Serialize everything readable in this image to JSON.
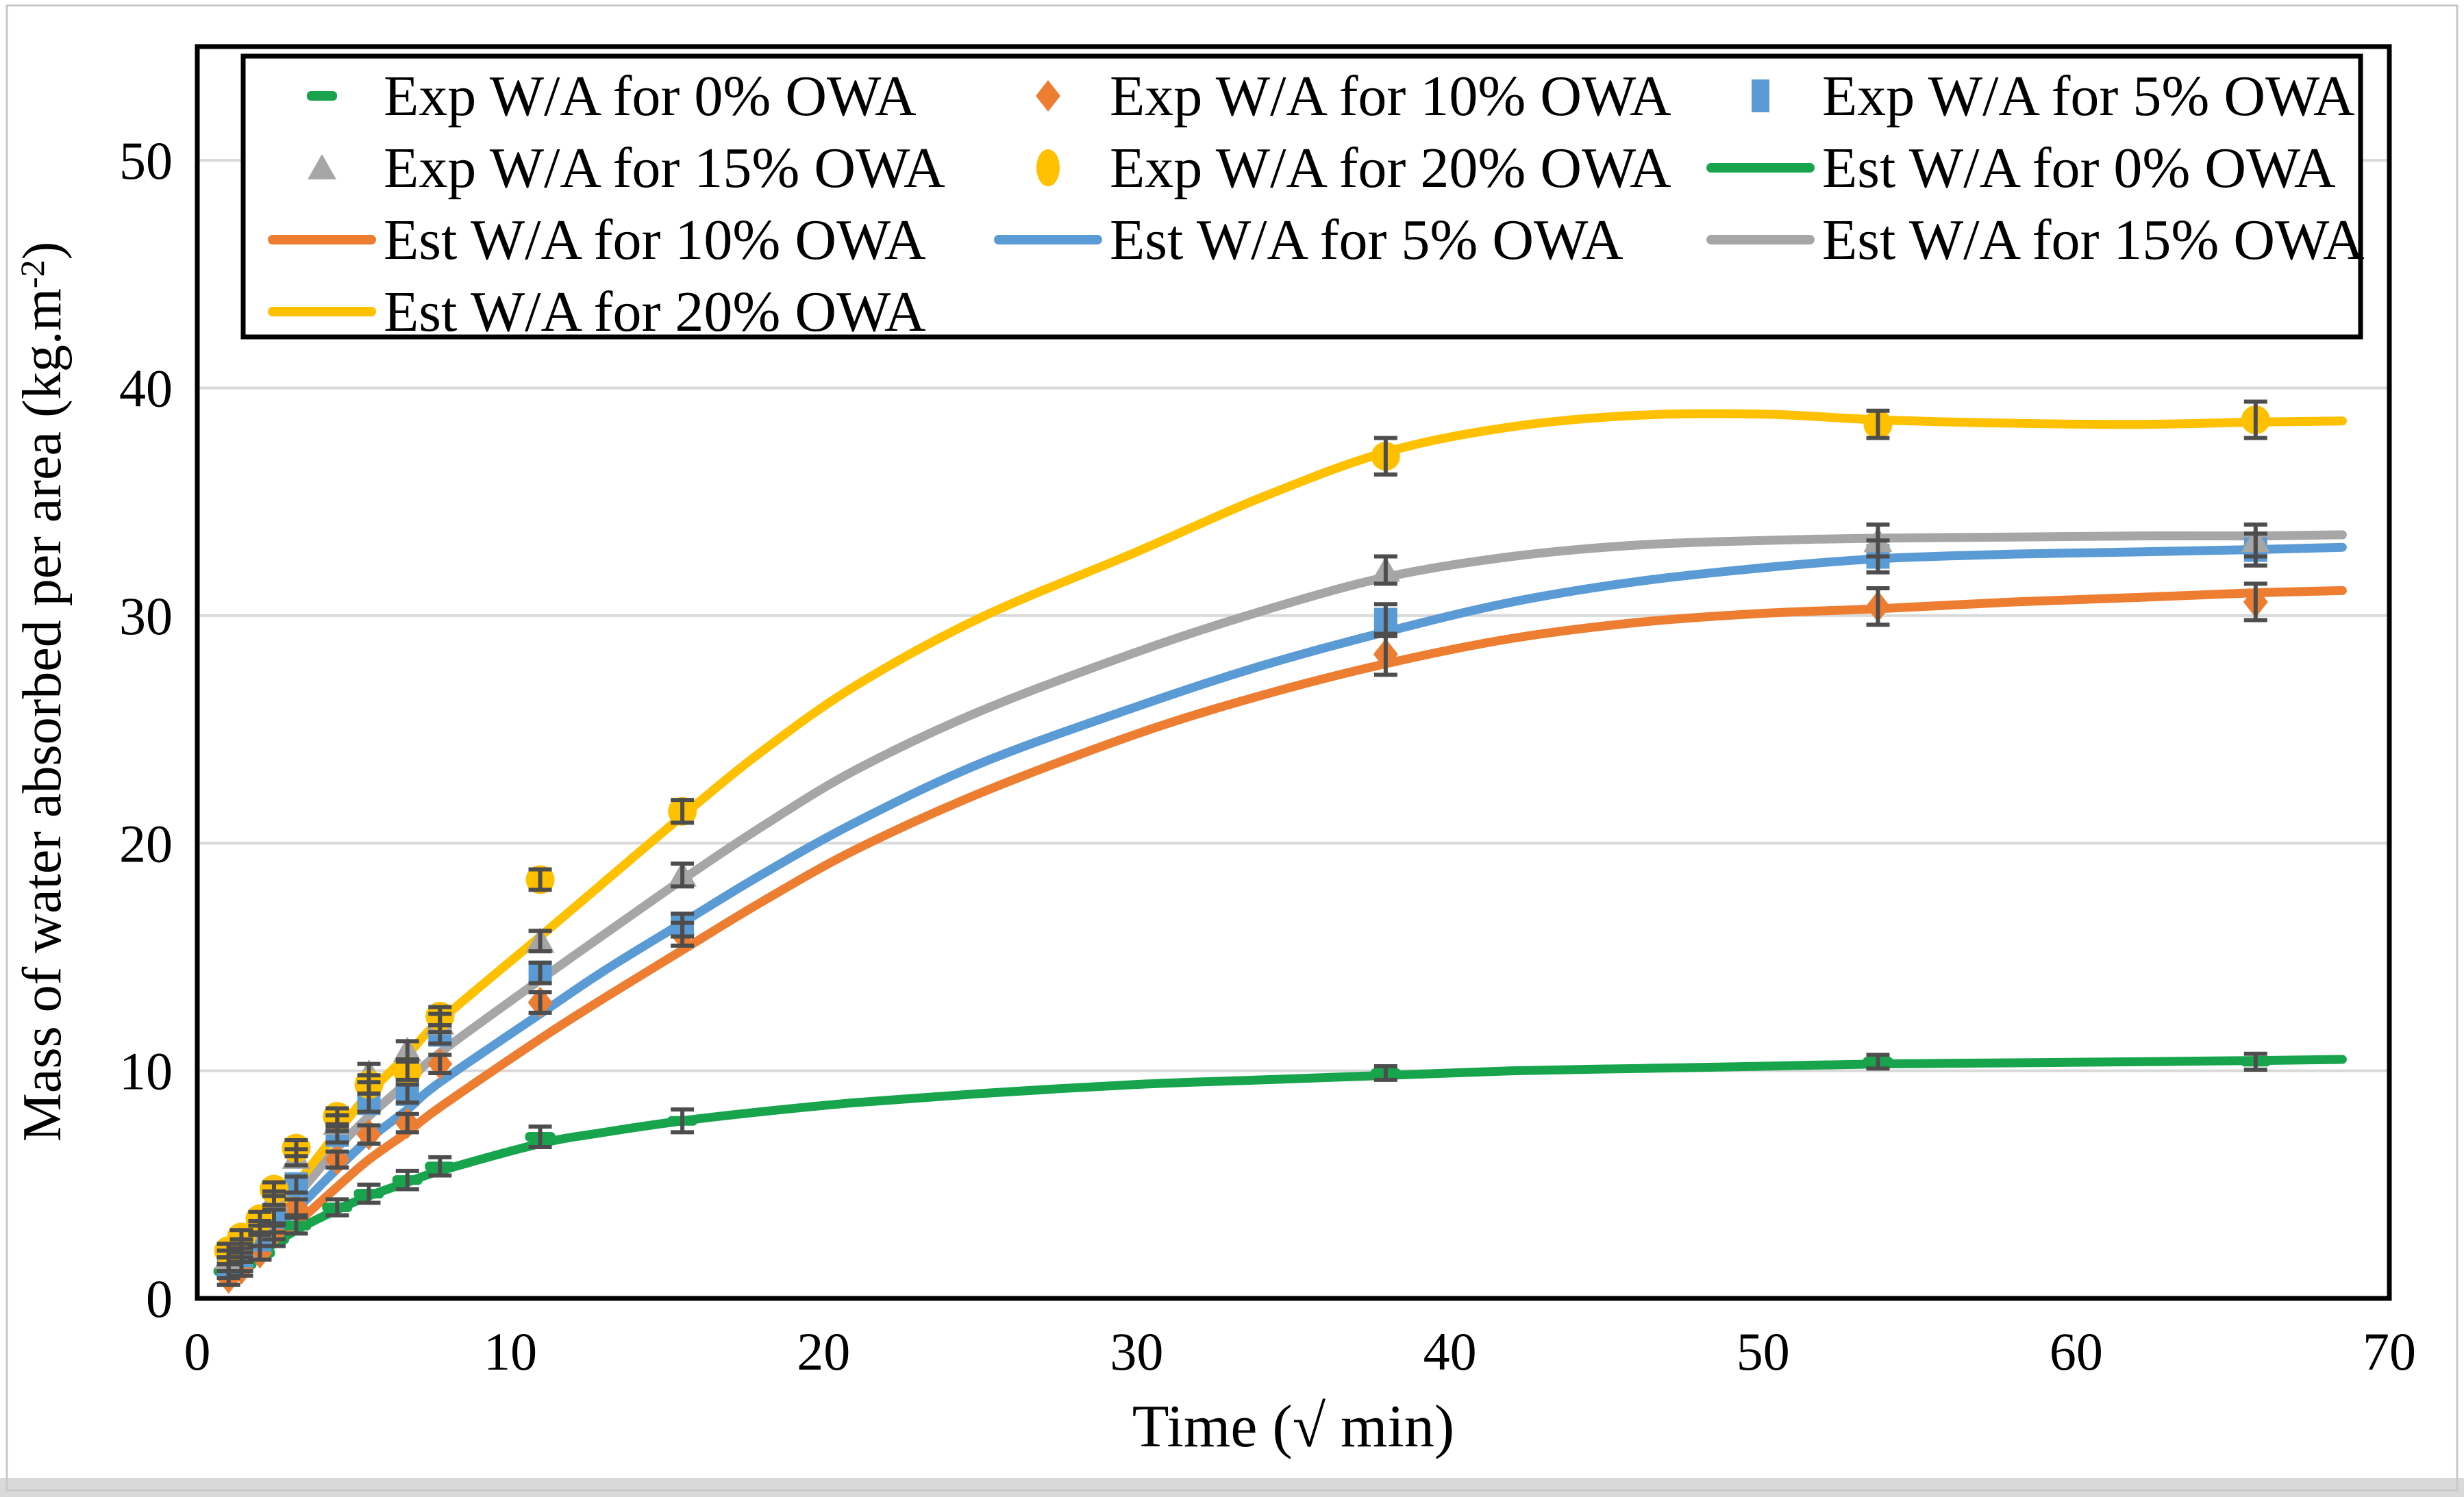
{
  "figure": {
    "background": "#ffffff",
    "outer_border_color": "#c9c9c9",
    "bottom_strip_color": "#d9d9d9"
  },
  "colors": {
    "green": "#17A44D",
    "orange": "#ED7D31",
    "blue": "#5B9BD5",
    "gray": "#A6A6A6",
    "yellow": "#FFC000",
    "error_bar": "#4D4D4D",
    "grid": "#D9D9D9",
    "plot_border": "#000000"
  },
  "chart_data": {
    "type": "line",
    "title": "",
    "xlabel": "Time (√ min)",
    "ylabel": "Mass of water absorbed per area (kg.m⁻²)",
    "ylabel_parts": {
      "main": "Mass of water absorbed per area (kg.m",
      "sup": "-2",
      "end": ")"
    },
    "xlim": [
      0,
      70
    ],
    "ylim": [
      0,
      55
    ],
    "x_ticks": [
      0,
      10,
      20,
      30,
      40,
      50,
      60,
      70
    ],
    "y_ticks": [
      0,
      10,
      20,
      30,
      40,
      50
    ],
    "grid": "horizontal",
    "legend_position": "top-inside-box",
    "x_exp": [
      1,
      1.41,
      2,
      2.45,
      3.16,
      4.47,
      5.48,
      6.71,
      7.75,
      10.95,
      15.49,
      37.95,
      53.67,
      65.73
    ],
    "exp_series": [
      {
        "name": "Exp W/A for 0% OWA",
        "shape": "dash",
        "color_key": "green",
        "values": [
          1.2,
          1.5,
          2.0,
          2.6,
          3.2,
          4.0,
          4.6,
          5.2,
          5.8,
          7.1,
          7.8,
          9.9,
          10.4,
          10.4
        ],
        "errors": [
          0.3,
          0.3,
          0.3,
          0.3,
          0.35,
          0.35,
          0.4,
          0.4,
          0.4,
          0.45,
          0.5,
          0.3,
          0.3,
          0.35
        ]
      },
      {
        "name": "Exp W/A for 10% OWA",
        "shape": "diamond",
        "color_key": "orange",
        "values": [
          0.9,
          1.3,
          2.0,
          2.9,
          4.0,
          6.1,
          7.2,
          7.7,
          10.3,
          13.0,
          16.0,
          28.3,
          30.4,
          30.6
        ],
        "errors": [
          0.3,
          0.3,
          0.3,
          0.3,
          0.35,
          0.35,
          0.4,
          0.4,
          0.4,
          0.45,
          0.5,
          0.9,
          0.8,
          0.8
        ]
      },
      {
        "name": "Exp W/A for 5% OWA",
        "shape": "square",
        "color_key": "blue",
        "values": [
          1.5,
          1.9,
          2.6,
          3.6,
          5.0,
          7.2,
          8.6,
          9.0,
          11.6,
          14.3,
          16.4,
          29.8,
          32.6,
          32.9
        ],
        "errors": [
          0.3,
          0.3,
          0.3,
          0.3,
          0.35,
          0.35,
          0.4,
          0.4,
          0.4,
          0.45,
          0.5,
          0.7,
          0.7,
          0.7
        ]
      },
      {
        "name": "Exp W/A for 15% OWA",
        "shape": "triangle",
        "color_key": "gray",
        "values": [
          1.8,
          2.3,
          3.1,
          4.4,
          6.2,
          7.7,
          9.9,
          10.9,
          12.1,
          15.7,
          18.6,
          32.0,
          33.3,
          33.3
        ],
        "errors": [
          0.3,
          0.3,
          0.3,
          0.3,
          0.35,
          0.35,
          0.4,
          0.4,
          0.4,
          0.45,
          0.5,
          0.6,
          0.7,
          0.7
        ]
      },
      {
        "name": "Exp W/A for 20% OWA",
        "shape": "circle",
        "color_key": "yellow",
        "values": [
          2.1,
          2.7,
          3.5,
          4.8,
          6.6,
          8.0,
          9.4,
          10.0,
          12.4,
          18.4,
          21.4,
          37.0,
          38.4,
          38.6
        ],
        "errors": [
          0.3,
          0.3,
          0.3,
          0.3,
          0.35,
          0.35,
          0.4,
          0.4,
          0.4,
          0.45,
          0.5,
          0.8,
          0.6,
          0.8
        ]
      }
    ],
    "x_est": [
      0.9,
      2,
      3.16,
      4.47,
      5.48,
      6.71,
      7.75,
      10.95,
      13,
      15.49,
      18,
      21,
      25,
      30,
      34,
      38,
      42,
      46,
      50,
      53.7,
      58,
      62,
      65.7,
      68.5
    ],
    "est_series": [
      {
        "name": "Est W/A for 0% OWA",
        "color_key": "green",
        "values": [
          1.0,
          2.0,
          3.0,
          3.9,
          4.5,
          5.1,
          5.6,
          6.8,
          7.3,
          7.8,
          8.2,
          8.6,
          9.0,
          9.4,
          9.6,
          9.8,
          10.0,
          10.1,
          10.2,
          10.3,
          10.35,
          10.4,
          10.45,
          10.5
        ]
      },
      {
        "name": "Est W/A for 10% OWA",
        "color_key": "orange",
        "values": [
          0.8,
          2.0,
          3.3,
          4.9,
          6.1,
          7.3,
          8.4,
          11.4,
          13.2,
          15.3,
          17.4,
          19.7,
          22.2,
          24.8,
          26.5,
          27.9,
          29.0,
          29.7,
          30.1,
          30.3,
          30.6,
          30.8,
          31.0,
          31.1
        ]
      },
      {
        "name": "Est W/A for 5% OWA",
        "color_key": "blue",
        "values": [
          1.2,
          2.4,
          3.9,
          5.7,
          7.0,
          8.3,
          9.5,
          12.5,
          14.4,
          16.5,
          18.6,
          20.9,
          23.5,
          26.0,
          27.8,
          29.3,
          30.6,
          31.5,
          32.1,
          32.5,
          32.7,
          32.8,
          32.9,
          33.0
        ]
      },
      {
        "name": "Est W/A for 15% OWA",
        "color_key": "gray",
        "values": [
          1.5,
          2.8,
          4.5,
          6.6,
          8.0,
          9.5,
          10.8,
          14.0,
          16.0,
          18.4,
          20.7,
          23.2,
          25.8,
          28.4,
          30.2,
          31.7,
          32.6,
          33.1,
          33.3,
          33.4,
          33.45,
          33.5,
          33.5,
          33.55
        ]
      },
      {
        "name": "Est W/A for 20% OWA",
        "color_key": "yellow",
        "values": [
          1.7,
          3.1,
          5.0,
          7.3,
          9.0,
          10.7,
          12.2,
          15.9,
          18.3,
          21.2,
          24.0,
          26.9,
          29.9,
          32.8,
          35.2,
          37.2,
          38.3,
          38.8,
          38.85,
          38.6,
          38.45,
          38.4,
          38.5,
          38.55
        ]
      }
    ]
  },
  "legend": {
    "items": [
      {
        "label": "Exp W/A for 0% OWA",
        "shape": "dash",
        "color_key": "green"
      },
      {
        "label": "Exp W/A for 10% OWA",
        "shape": "diamond",
        "color_key": "orange"
      },
      {
        "label": "Exp W/A for 5% OWA",
        "shape": "vrect",
        "color_key": "blue"
      },
      {
        "label": "Exp W/A for 15% OWA",
        "shape": "triangle",
        "color_key": "gray"
      },
      {
        "label": "Exp W/A for 20% OWA",
        "shape": "ellipse",
        "color_key": "yellow"
      },
      {
        "label": "Est W/A for 0% OWA",
        "shape": "line",
        "color_key": "green"
      },
      {
        "label": "Est W/A for 10% OWA",
        "shape": "line",
        "color_key": "orange"
      },
      {
        "label": "Est W/A for 5% OWA",
        "shape": "line",
        "color_key": "blue"
      },
      {
        "label": "Est W/A for 15% OWA",
        "shape": "line",
        "color_key": "gray"
      },
      {
        "label": "Est W/A for 20% OWA",
        "shape": "line",
        "color_key": "yellow"
      }
    ]
  }
}
